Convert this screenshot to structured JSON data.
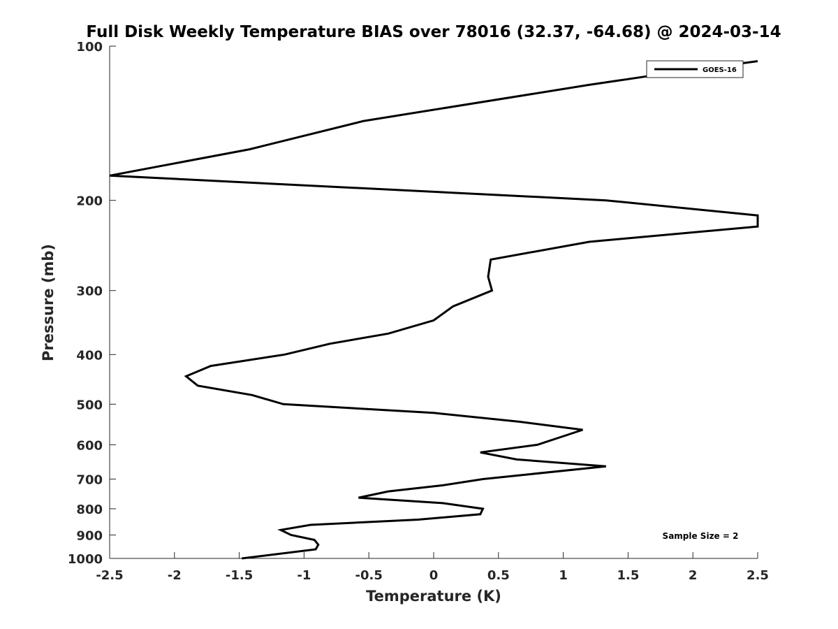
{
  "chart_data": {
    "type": "line",
    "title": "Full Disk Weekly Temperature BIAS over 78016 (32.37, -64.68) @ 2024-03-14",
    "xlabel": "Temperature (K)",
    "ylabel": "Pressure (mb)",
    "xlim": [
      -2.5,
      2.5
    ],
    "ylim": [
      1000,
      100
    ],
    "yscale": "log",
    "y_reversed": true,
    "grid": false,
    "legend_position": "top-right",
    "xticks": [
      -2.5,
      -2,
      -1.5,
      -1,
      -0.5,
      0,
      0.5,
      1,
      1.5,
      2,
      2.5
    ],
    "xtick_labels": [
      "-2.5",
      "-2",
      "-1.5",
      "-1",
      "-0.5",
      "0",
      "0.5",
      "1",
      "1.5",
      "2",
      "2.5"
    ],
    "yticks": [
      100,
      200,
      300,
      400,
      500,
      600,
      700,
      800,
      900,
      1000
    ],
    "ytick_labels": [
      "100",
      "200",
      "300",
      "400",
      "500",
      "600",
      "700",
      "800",
      "900",
      "1000"
    ],
    "series": [
      {
        "name": "GOES-16",
        "color": "#000000",
        "points": [
          [
            2.5,
            107
          ],
          [
            1.7,
            114
          ],
          [
            1.2,
            119
          ],
          [
            -0.54,
            140
          ],
          [
            -1.42,
            159
          ],
          [
            -2.5,
            179
          ],
          [
            1.33,
            200
          ],
          [
            2.5,
            214
          ],
          [
            2.5,
            225
          ],
          [
            1.2,
            241
          ],
          [
            0.44,
            261
          ],
          [
            0.42,
            282
          ],
          [
            0.45,
            300
          ],
          [
            0.15,
            322
          ],
          [
            0,
            343
          ],
          [
            -0.35,
            364
          ],
          [
            -0.8,
            381
          ],
          [
            -1.15,
            400
          ],
          [
            -1.72,
            421
          ],
          [
            -1.91,
            441
          ],
          [
            -1.82,
            460
          ],
          [
            -1.4,
            480
          ],
          [
            -1.16,
            500
          ],
          [
            0,
            520
          ],
          [
            0.66,
            541
          ],
          [
            1.15,
            561
          ],
          [
            0.8,
            600
          ],
          [
            0.36,
            621
          ],
          [
            0.64,
            641
          ],
          [
            1.33,
            661
          ],
          [
            0.38,
            700
          ],
          [
            0.07,
            720
          ],
          [
            -0.35,
            740
          ],
          [
            -0.58,
            761
          ],
          [
            0.07,
            780
          ],
          [
            0.38,
            800
          ],
          [
            0.36,
            820
          ],
          [
            -0.12,
            840
          ],
          [
            -0.95,
            860
          ],
          [
            -1.18,
            880
          ],
          [
            -1.1,
            900
          ],
          [
            -0.92,
            920
          ],
          [
            -0.89,
            940
          ],
          [
            -0.91,
            960
          ],
          [
            -1.48,
            1000
          ]
        ]
      }
    ],
    "annotations": [
      "Sample Size = 2"
    ]
  }
}
